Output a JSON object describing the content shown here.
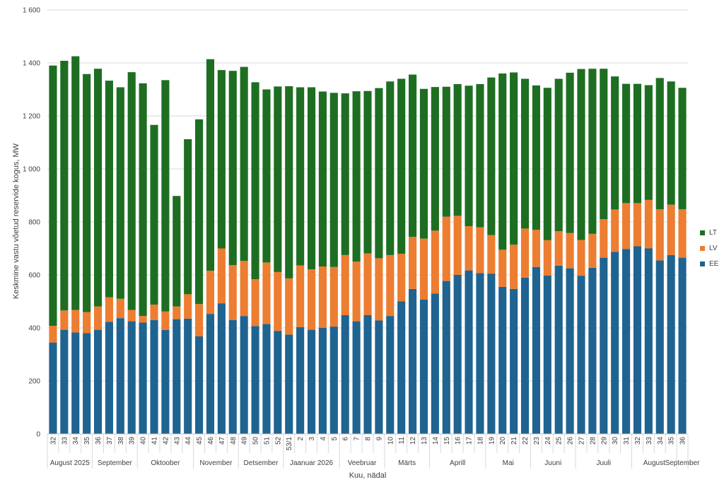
{
  "chart_data": {
    "type": "bar",
    "stacked": true,
    "title": "",
    "xlabel": "Kuu, nädal",
    "ylabel": "Keskmine vastu võetud reservide kogus, MW",
    "ylim": [
      0,
      1600
    ],
    "yticks": [
      0,
      200,
      400,
      600,
      800,
      1000,
      1200,
      1400,
      1600
    ],
    "ytick_labels": [
      "0",
      "200",
      "400",
      "600",
      "800",
      "1 000",
      "1 200",
      "1 400",
      "1 600"
    ],
    "grid": true,
    "legend_position": "right",
    "categories": [
      "32",
      "33",
      "34",
      "35",
      "36",
      "37",
      "38",
      "39",
      "40",
      "41",
      "42",
      "43",
      "44",
      "45",
      "46",
      "47",
      "48",
      "49",
      "50",
      "51",
      "52",
      "53/1",
      "2",
      "3",
      "4",
      "5",
      "6",
      "7",
      "8",
      "9",
      "10",
      "11",
      "12",
      "13",
      "14",
      "15",
      "16",
      "17",
      "18",
      "19",
      "20",
      "21",
      "22",
      "23",
      "24",
      "25",
      "26",
      "27",
      "28",
      "29",
      "30",
      "31",
      "32",
      "33",
      "34",
      "35",
      "36"
    ],
    "months": [
      {
        "label": "August 2025",
        "start": 0,
        "end": 3
      },
      {
        "label": "September",
        "start": 4,
        "end": 7
      },
      {
        "label": "Oktoober",
        "start": 8,
        "end": 12
      },
      {
        "label": "November",
        "start": 13,
        "end": 16
      },
      {
        "label": "Detsember",
        "start": 17,
        "end": 20
      },
      {
        "label": "Jaanuar 2026",
        "start": 21,
        "end": 25
      },
      {
        "label": "Veebruar",
        "start": 26,
        "end": 29
      },
      {
        "label": "Märts",
        "start": 30,
        "end": 33
      },
      {
        "label": "Aprill",
        "start": 34,
        "end": 38
      },
      {
        "label": "Mai",
        "start": 39,
        "end": 42
      },
      {
        "label": "Juuni",
        "start": 43,
        "end": 46
      },
      {
        "label": "Juuli",
        "start": 47,
        "end": 51
      },
      {
        "label": "August",
        "start": 52,
        "end": 55
      },
      {
        "label": "September",
        "start": 56,
        "end": 56
      }
    ],
    "series": [
      {
        "name": "EE",
        "color": "#1F6391",
        "values": [
          345,
          393,
          383,
          380,
          393,
          423,
          437,
          425,
          420,
          430,
          392,
          433,
          435,
          368,
          453,
          493,
          430,
          445,
          407,
          415,
          388,
          375,
          403,
          393,
          400,
          405,
          448,
          425,
          448,
          428,
          445,
          500,
          547,
          507,
          530,
          577,
          600,
          617,
          607,
          605,
          555,
          547,
          590,
          630,
          598,
          635,
          625,
          597,
          627,
          665,
          687,
          698,
          708,
          700,
          655,
          675,
          665
        ]
      },
      {
        "name": "LV",
        "color": "#ED7D31",
        "values": [
          63,
          73,
          85,
          80,
          88,
          93,
          73,
          43,
          25,
          58,
          70,
          48,
          92,
          122,
          163,
          207,
          207,
          208,
          177,
          232,
          223,
          212,
          233,
          228,
          232,
          225,
          227,
          225,
          233,
          235,
          230,
          180,
          197,
          230,
          237,
          243,
          223,
          167,
          173,
          145,
          140,
          167,
          185,
          140,
          133,
          130,
          133,
          135,
          128,
          145,
          160,
          173,
          163,
          183,
          193,
          190,
          183
        ]
      },
      {
        "name": "LT",
        "color": "#1E6E22",
        "values": [
          982,
          942,
          957,
          898,
          897,
          817,
          798,
          897,
          878,
          678,
          873,
          417,
          585,
          697,
          798,
          673,
          733,
          732,
          743,
          653,
          700,
          725,
          672,
          687,
          660,
          657,
          610,
          643,
          613,
          642,
          655,
          660,
          612,
          565,
          542,
          490,
          497,
          530,
          540,
          595,
          665,
          650,
          565,
          545,
          575,
          575,
          605,
          645,
          623,
          568,
          502,
          450,
          450,
          433,
          495,
          465,
          458
        ]
      }
    ]
  }
}
